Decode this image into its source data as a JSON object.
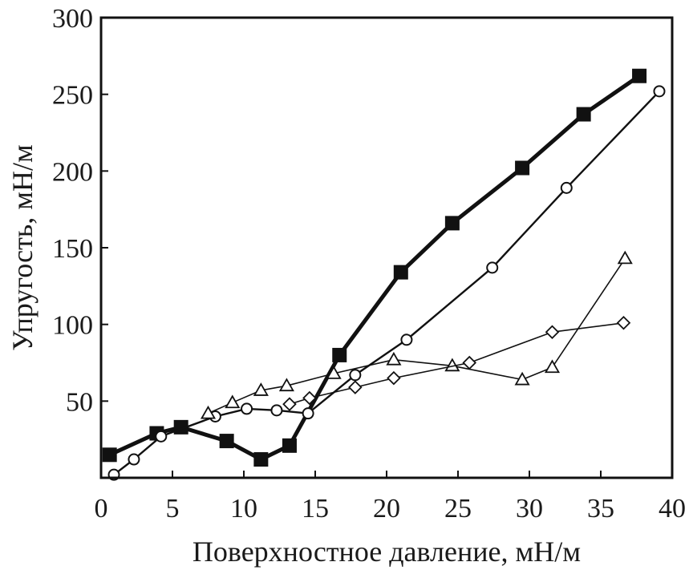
{
  "chart_data": {
    "type": "line",
    "title": "",
    "xlabel": "Поверхностное давление, мН/м",
    "ylabel": "Упругость, мН/м",
    "xlim": [
      0,
      40
    ],
    "ylim": [
      0,
      300
    ],
    "xticks": [
      0,
      5,
      10,
      15,
      20,
      25,
      30,
      35,
      40
    ],
    "yticks": [
      50,
      100,
      150,
      200,
      250,
      300
    ],
    "grid": false,
    "legend": "none",
    "series": [
      {
        "marker": "filled-square",
        "line_weight": "heavy",
        "color": "#111111",
        "x": [
          0.6,
          3.9,
          5.6,
          8.8,
          11.2,
          13.2,
          16.7,
          21.0,
          24.6,
          29.5,
          33.8,
          37.7
        ],
        "y": [
          15,
          29,
          33,
          24,
          12,
          21,
          80,
          134,
          166,
          202,
          237,
          262
        ]
      },
      {
        "marker": "open-circle",
        "line_weight": "normal",
        "color": "#111111",
        "x": [
          0.9,
          2.3,
          4.2,
          8.0,
          10.2,
          12.3,
          14.5,
          17.8,
          21.4,
          27.4,
          32.6,
          39.1
        ],
        "y": [
          2,
          12,
          27,
          40,
          45,
          44,
          42,
          67,
          90,
          137,
          189,
          252
        ]
      },
      {
        "marker": "open-triangle",
        "line_weight": "thin",
        "color": "#111111",
        "x": [
          7.5,
          9.2,
          11.2,
          13.0,
          16.3,
          20.5,
          24.6,
          29.5,
          31.6,
          36.7
        ],
        "y": [
          42,
          49,
          57,
          60,
          68,
          77,
          73,
          64,
          72,
          143
        ]
      },
      {
        "marker": "open-diamond",
        "line_weight": "thin",
        "color": "#111111",
        "x": [
          13.2,
          14.6,
          17.8,
          20.5,
          25.8,
          31.6,
          36.6
        ],
        "y": [
          48,
          52,
          59,
          65,
          75,
          95,
          101
        ]
      }
    ]
  }
}
